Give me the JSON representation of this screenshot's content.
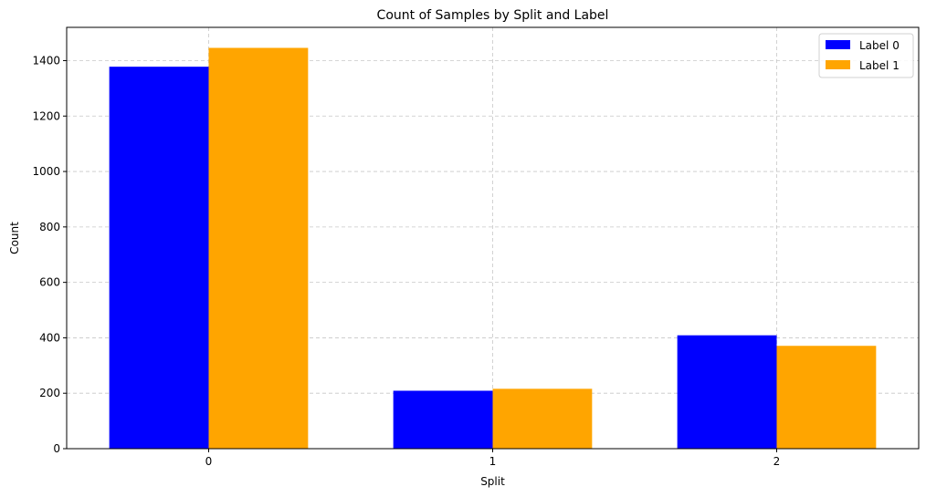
{
  "chart_data": {
    "type": "bar",
    "title": "Count of Samples by Split and Label",
    "xlabel": "Split",
    "ylabel": "Count",
    "categories": [
      "0",
      "1",
      "2"
    ],
    "series": [
      {
        "name": "Label 0",
        "color": "#0000ff",
        "values": [
          1378,
          209,
          409
        ]
      },
      {
        "name": "Label 1",
        "color": "#ffa500",
        "values": [
          1446,
          216,
          371
        ]
      }
    ],
    "ylim": [
      0,
      1520
    ],
    "yticks": [
      0,
      200,
      400,
      600,
      800,
      1000,
      1200,
      1400
    ],
    "grid": true,
    "legend_position": "top-right"
  }
}
